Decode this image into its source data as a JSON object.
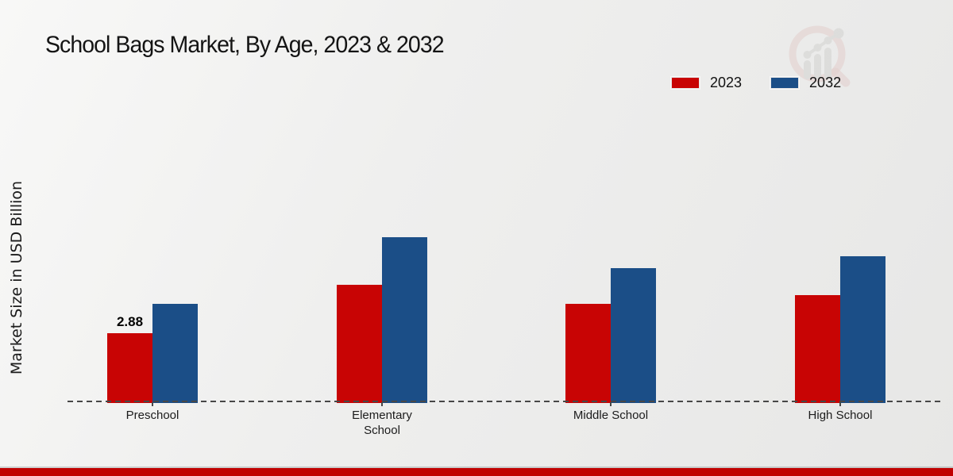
{
  "page": {
    "footer_stripe_color": "#c00000"
  },
  "watermark_icon": "market-research-magnifier-logo",
  "chart_data": {
    "type": "bar",
    "title": "School Bags Market, By Age, 2023 & 2032",
    "ylabel": "Market Size in USD Billion",
    "xlabel": "",
    "categories": [
      "Preschool",
      "Elementary School",
      "Middle School",
      "High School"
    ],
    "series": [
      {
        "name": "2023",
        "color": "#c80404",
        "values": [
          2.88,
          4.89,
          4.1,
          4.47
        ]
      },
      {
        "name": "2032",
        "color": "#1b4e87",
        "values": [
          4.1,
          6.89,
          5.58,
          6.08
        ]
      }
    ],
    "labeled_value": {
      "series": "2023",
      "category": "Preschool",
      "label": "2.88"
    },
    "ylim": [
      0,
      8
    ],
    "grid": false,
    "axis_style": "dashed-baseline-only",
    "legend_position": "top-right"
  }
}
